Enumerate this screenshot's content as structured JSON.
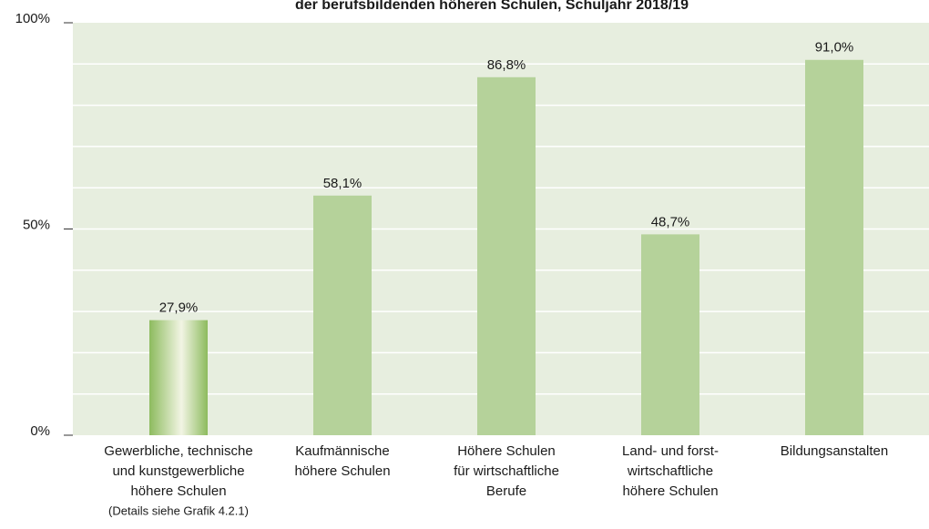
{
  "chart_data": {
    "type": "bar",
    "title": "der berufsbildenden höheren Schulen, Schuljahr 2018/19",
    "categories": [
      [
        "Gewerbliche, technische",
        "und kunstgewerbliche",
        "höhere Schulen",
        "(Details siehe Grafik 4.2.1)"
      ],
      [
        "Kaufmännische",
        "höhere Schulen"
      ],
      [
        "Höhere Schulen",
        "für wirtschaftliche",
        "Berufe"
      ],
      [
        "Land- und forst-",
        "wirtschaftliche",
        "höhere Schulen"
      ],
      [
        "Bildungsanstalten"
      ]
    ],
    "values": [
      27.9,
      58.1,
      86.8,
      48.7,
      91.0
    ],
    "value_labels": [
      "27,9%",
      "58,1%",
      "86,8%",
      "48,7%",
      "91,0%"
    ],
    "color": "#b5d29a",
    "ylim": [
      0,
      100
    ],
    "yticks": [
      {
        "value": 0,
        "label": "0%"
      },
      {
        "value": 50,
        "label": "50%"
      },
      {
        "value": 100,
        "label": "100%"
      }
    ],
    "minor_gridlines": [
      10,
      20,
      30,
      40,
      60,
      70,
      80,
      90
    ],
    "grid": true
  }
}
